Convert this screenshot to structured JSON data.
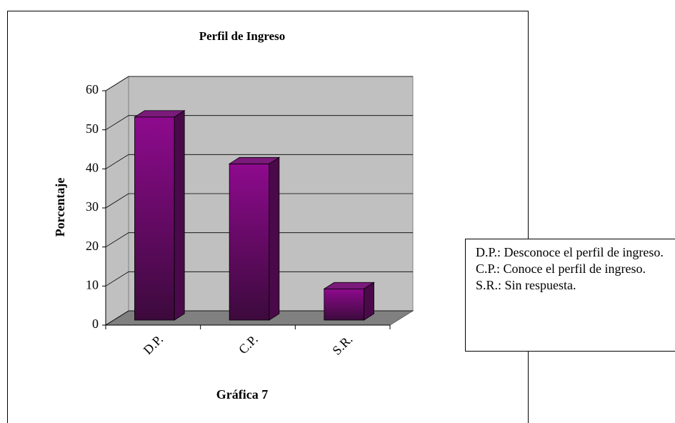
{
  "chart_data": {
    "type": "bar",
    "title": "Perfil de Ingreso",
    "categories": [
      "D.P.",
      "C.P.",
      "S.R."
    ],
    "values": [
      52,
      40,
      8
    ],
    "color": "#800080",
    "ylim": [
      0,
      60
    ],
    "yticks": [
      0,
      10,
      20,
      30,
      40,
      50,
      60
    ],
    "grid": true,
    "y_label": "Porcentaje",
    "x_label": "Gráfica 7",
    "notes": [
      "D.P.: Desconoce el perfil de ingreso.",
      "C.P.: Conoce el perfil de ingreso.",
      "S.R.: Sin respuesta."
    ]
  }
}
